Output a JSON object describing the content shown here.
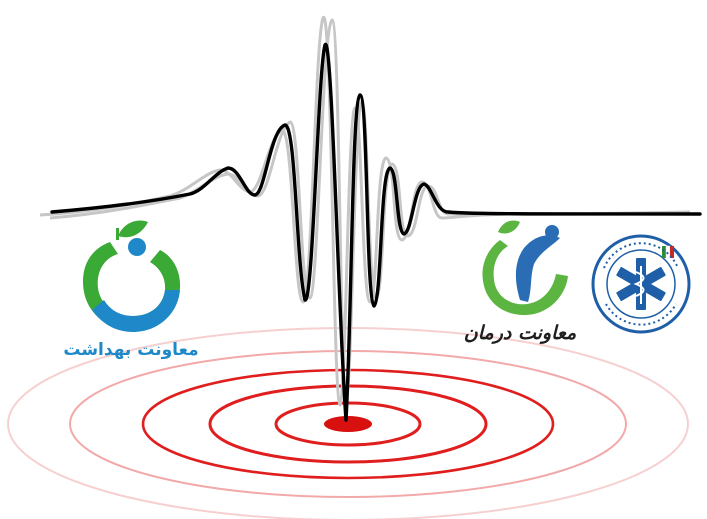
{
  "logos": {
    "health": {
      "caption": "معاونت بهداشت",
      "color": "#1e88c8",
      "accent": "#3aa935",
      "icon": "apple-ring-logo"
    },
    "treatment": {
      "caption": "معاونت درمان",
      "color": "#1f1f1f",
      "accent": "#5bb540",
      "icon": "figure-leaf-logo"
    },
    "ems": {
      "icon": "star-of-life-seal",
      "color": "#1f5fa8",
      "accent": "#c62828"
    }
  },
  "colors": {
    "seismograph": "#000000",
    "seismograph_shadow": "#b8b8b8",
    "ripples": "#e01e1e",
    "ripples_faded": "#f4b7b7",
    "epicenter": "#d81010"
  }
}
